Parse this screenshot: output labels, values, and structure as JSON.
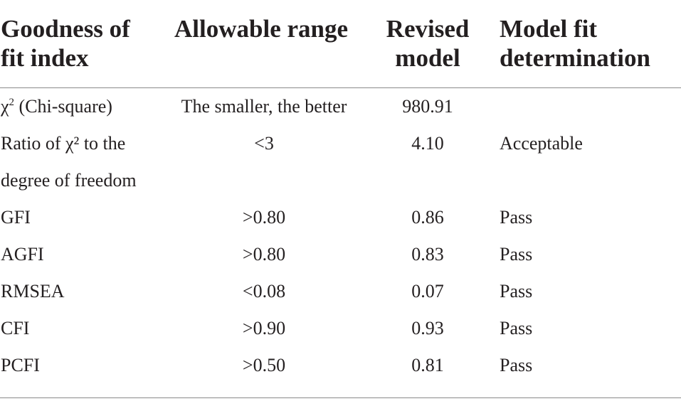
{
  "table": {
    "headers": [
      "Goodness of\nfit index",
      "Allowable range",
      "Revised\nmodel",
      "Model fit\ndetermination"
    ],
    "rows": [
      {
        "index": "(Chi-square)",
        "index_symbol": "χ",
        "index_sup": "2",
        "range": "The smaller, the better",
        "value": "980.91",
        "determination": ""
      },
      {
        "index_lines": [
          "Ratio of χ² to the",
          "degree of freedom"
        ],
        "range": "<3",
        "value": "4.10",
        "determination": "Acceptable"
      },
      {
        "index": "GFI",
        "range": ">0.80",
        "value": "0.86",
        "determination": "Pass"
      },
      {
        "index": "AGFI",
        "range": ">0.80",
        "value": "0.83",
        "determination": "Pass"
      },
      {
        "index": "RMSEA",
        "range": "<0.08",
        "value": "0.07",
        "determination": "Pass"
      },
      {
        "index": "CFI",
        "range": ">0.90",
        "value": "0.93",
        "determination": "Pass"
      },
      {
        "index": "PCFI",
        "range": ">0.50",
        "value": "0.81",
        "determination": "Pass"
      }
    ]
  }
}
